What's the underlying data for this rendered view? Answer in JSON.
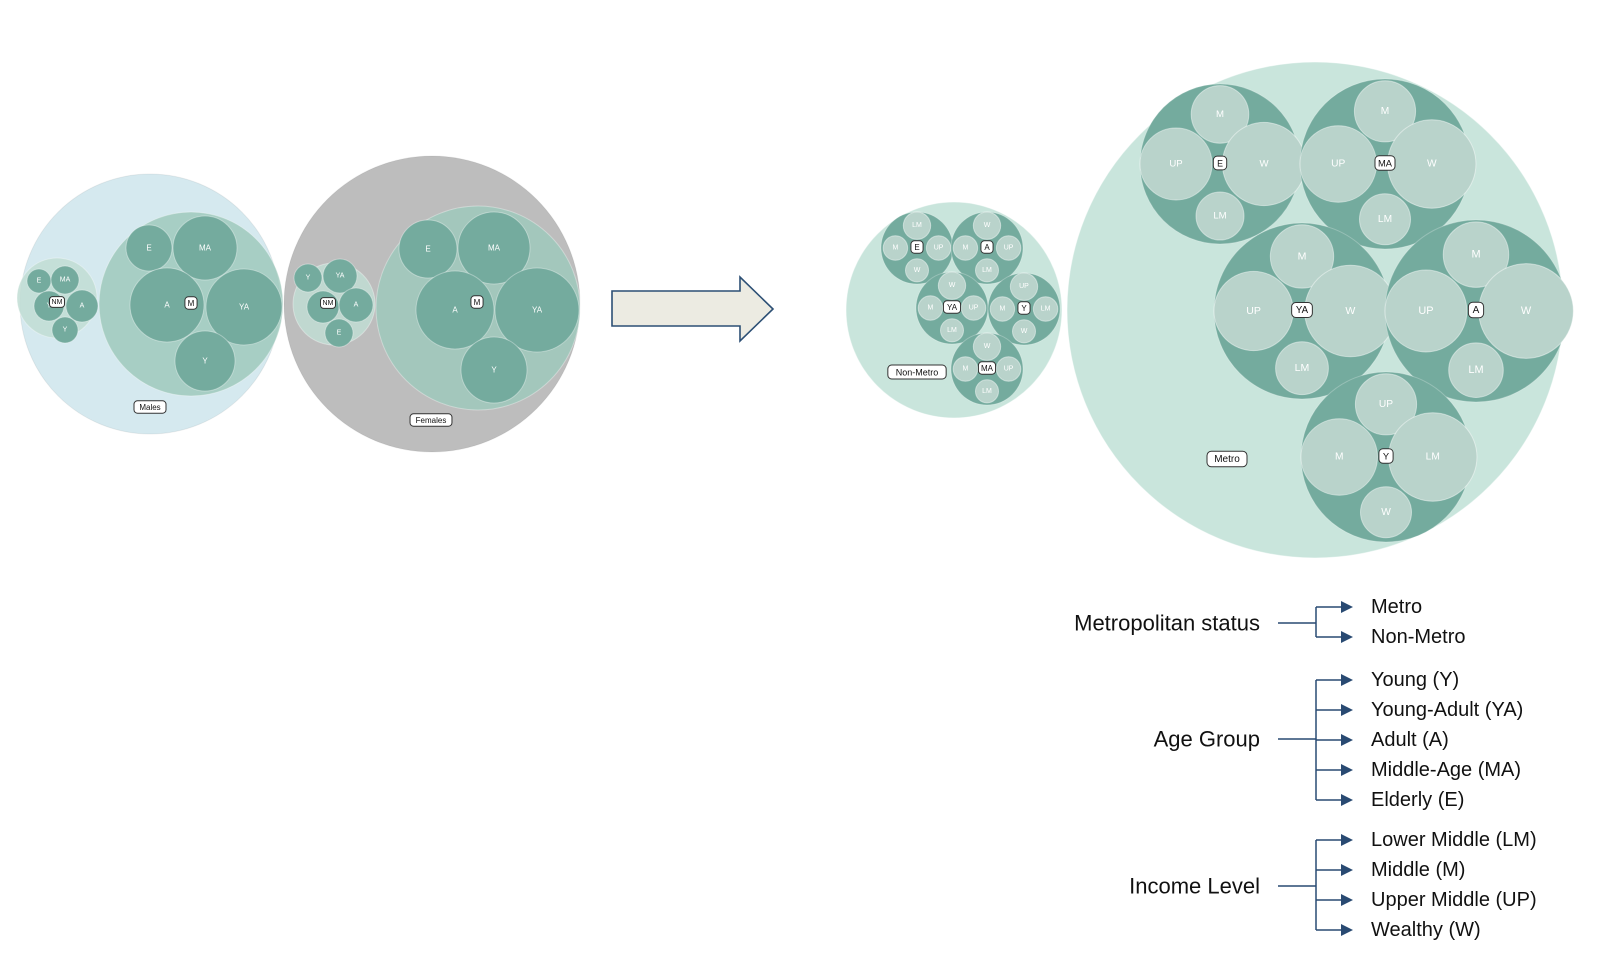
{
  "colors": {
    "males_bg": "#d5e9ef",
    "females_bg": "#bdbdbd",
    "cluster_light": "#c1ddd4",
    "cluster_mid": "#9fc9bc",
    "node_dark": "#74ab9e",
    "node_pale": "#b9d3cb",
    "metro_bg": "#c9e5dc",
    "arrow_fill": "#ecebe2",
    "arrow_stroke": "#2c4f74",
    "legend_line": "#294a72"
  },
  "before": {
    "males": {
      "label": "Males",
      "nonmetro": {
        "label": "NM",
        "nodes": [
          "E",
          "MA",
          "Y",
          "A",
          "Y"
        ]
      },
      "metro": {
        "label": "M",
        "nodes": [
          "E",
          "MA",
          "A",
          "YA",
          "Y"
        ]
      }
    },
    "females": {
      "label": "Females",
      "nonmetro": {
        "label": "NM",
        "nodes": [
          "Y",
          "YA",
          "Y",
          "A",
          "E"
        ]
      },
      "metro": {
        "label": "M",
        "nodes": [
          "E",
          "MA",
          "A",
          "YA",
          "Y"
        ]
      }
    }
  },
  "after": {
    "nonmetro": {
      "label": "Non-Metro",
      "groups": [
        {
          "age": "E",
          "income": [
            "LM",
            "M",
            "UP",
            "W"
          ]
        },
        {
          "age": "A",
          "income": [
            "W",
            "M",
            "UP",
            "LM"
          ]
        },
        {
          "age": "YA",
          "income": [
            "W",
            "M",
            "UP",
            "LM"
          ]
        },
        {
          "age": "Y",
          "income": [
            "UP",
            "M",
            "LM",
            "W"
          ]
        },
        {
          "age": "MA",
          "income": [
            "W",
            "M",
            "UP",
            "LM"
          ]
        }
      ]
    },
    "metro": {
      "label": "Metro",
      "groups": [
        {
          "age": "E",
          "income": [
            "M",
            "UP",
            "W",
            "LM"
          ]
        },
        {
          "age": "MA",
          "income": [
            "M",
            "UP",
            "W",
            "LM"
          ]
        },
        {
          "age": "YA",
          "income": [
            "M",
            "UP",
            "W",
            "LM"
          ]
        },
        {
          "age": "A",
          "income": [
            "M",
            "UP",
            "W",
            "LM"
          ]
        },
        {
          "age": "Y",
          "income": [
            "UP",
            "M",
            "LM",
            "W"
          ]
        }
      ]
    }
  },
  "legend": {
    "metropolitan": {
      "title": "Metropolitan status",
      "items": [
        "Metro",
        "Non-Metro"
      ]
    },
    "age": {
      "title": "Age Group",
      "items": [
        "Young (Y)",
        "Young-Adult (YA)",
        "Adult (A)",
        "Middle-Age (MA)",
        "Elderly (E)"
      ]
    },
    "income": {
      "title": "Income Level",
      "items": [
        "Lower Middle (LM)",
        "Middle (M)",
        "Upper Middle (UP)",
        "Wealthy (W)"
      ]
    }
  }
}
